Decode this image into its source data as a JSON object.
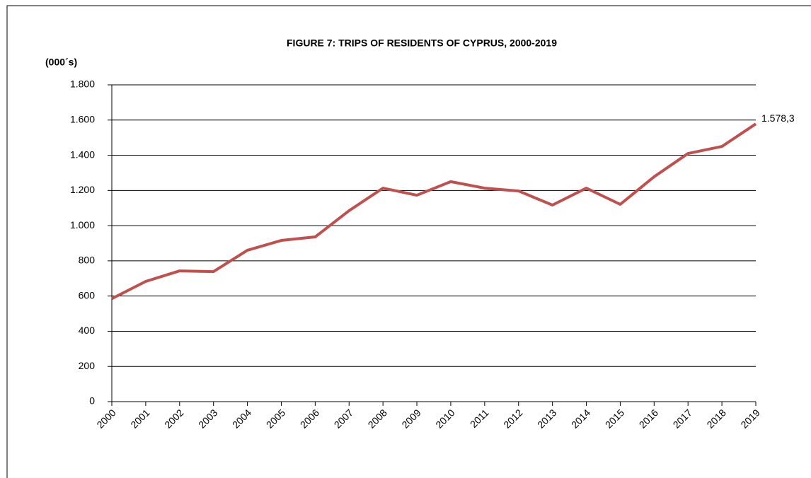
{
  "chart_data": {
    "type": "line",
    "title": "FIGURE 7: TRIPS OF RESIDENTS OF CYPRUS, 2000-2019",
    "y_label": "(000´s)",
    "categories": [
      "2000",
      "2001",
      "2002",
      "2003",
      "2004",
      "2005",
      "2006",
      "2007",
      "2008",
      "2009",
      "2010",
      "2011",
      "2012",
      "2013",
      "2014",
      "2015",
      "2016",
      "2017",
      "2018",
      "2019"
    ],
    "values": [
      585,
      683,
      743,
      739,
      860,
      916,
      936,
      1085,
      1213,
      1173,
      1250,
      1213,
      1197,
      1117,
      1213,
      1121,
      1278,
      1410,
      1450,
      1578.3
    ],
    "value_labels": [
      null,
      null,
      null,
      null,
      null,
      null,
      null,
      null,
      null,
      null,
      null,
      null,
      null,
      null,
      null,
      null,
      null,
      null,
      null,
      "1.578,3"
    ],
    "color": "#c0504d",
    "ylim": [
      0,
      1800
    ],
    "yticks": [
      0,
      200,
      400,
      600,
      800,
      {
        "value": 1000,
        "label": "1.000"
      },
      {
        "value": 1200,
        "label": "1.200"
      },
      {
        "value": 1400,
        "label": "1.400"
      },
      {
        "value": 1600,
        "label": "1.600"
      },
      {
        "value": 1800,
        "label": "1.800"
      }
    ],
    "grid": true
  }
}
